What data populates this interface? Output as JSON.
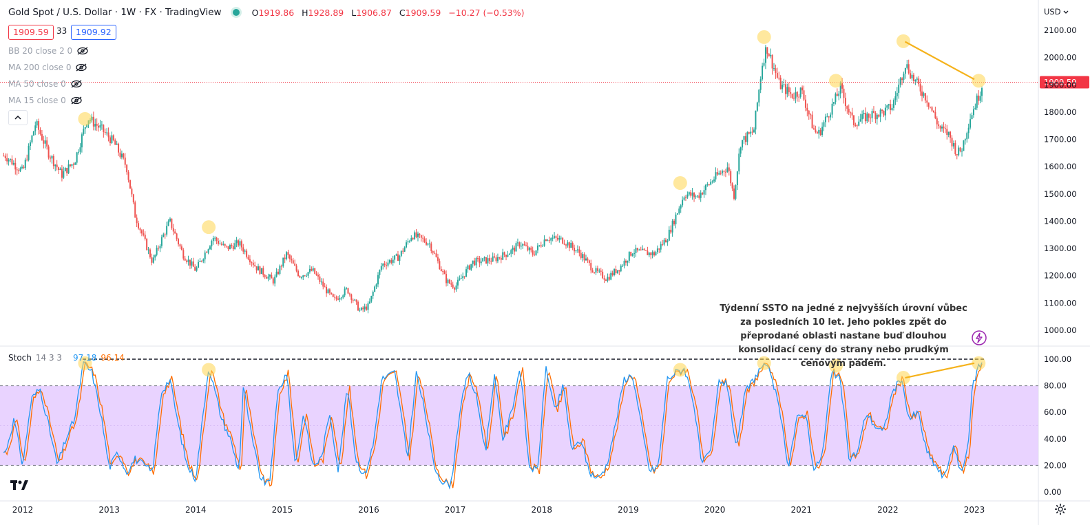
{
  "header": {
    "title": "Gold Spot / U.S. Dollar · 1W · FX  · TradingView",
    "ohlc": [
      {
        "k": "O",
        "v": "1919.86"
      },
      {
        "k": "H",
        "v": "1928.89"
      },
      {
        "k": "L",
        "v": "1906.87"
      },
      {
        "k": "C",
        "v": "1909.59"
      }
    ],
    "change": "−10.27 (−0.53%)",
    "sell_price": "1909.59",
    "spread": "33",
    "buy_price": "1909.92",
    "currency": "USD"
  },
  "indicators": [
    {
      "label": "BB 20 close 2 0"
    },
    {
      "label": "MA 200 close 0"
    },
    {
      "label": "MA 50 close 0"
    },
    {
      "label": "MA 15 close 0"
    }
  ],
  "stoch_legend": {
    "name": "Stoch",
    "params": "14 3 3",
    "k_value": "97.18",
    "d_value": "96.14"
  },
  "annotation": "Týdenní SSTO na jedné z nejvyšších úrovní vůbec za posledních 10 let. Jeho pokles zpět do přeprodané oblasti nastane buď dlouhou konsolidací ceny do strany nebo prudkým cenovým pádem.",
  "colors": {
    "up": "#26a69a",
    "down": "#ef5350",
    "k_line": "#2196f3",
    "d_line": "#ff6d00",
    "band": "#e1c4ff",
    "highlight": "#ffd54f",
    "trend": "#f5b21b",
    "last_price": "#f23645"
  },
  "chart_data": [
    {
      "type": "candlestick",
      "title": "Gold Spot / U.S. Dollar",
      "timeframe": "1W",
      "x_ticks": [
        "2012",
        "2013",
        "2014",
        "2015",
        "2016",
        "2017",
        "2018",
        "2019",
        "2020",
        "2021",
        "2022",
        "2023"
      ],
      "y_ticks": [
        "2100.00",
        "2000.00",
        "1900.00",
        "1800.00",
        "1700.00",
        "1600.00",
        "1500.00",
        "1400.00",
        "1300.00",
        "1200.00",
        "1100.00",
        "1000.00"
      ],
      "ylim": [
        960,
        2140
      ],
      "last_price": 1909.59,
      "last_price_label": "1909.59",
      "anchor_path": [
        [
          2011.8,
          1640
        ],
        [
          2012.0,
          1580
        ],
        [
          2012.15,
          1760
        ],
        [
          2012.3,
          1650
        ],
        [
          2012.45,
          1570
        ],
        [
          2012.6,
          1620
        ],
        [
          2012.75,
          1780
        ],
        [
          2012.9,
          1740
        ],
        [
          2013.05,
          1690
        ],
        [
          2013.2,
          1600
        ],
        [
          2013.3,
          1420
        ],
        [
          2013.5,
          1250
        ],
        [
          2013.6,
          1330
        ],
        [
          2013.7,
          1400
        ],
        [
          2013.85,
          1280
        ],
        [
          2014.0,
          1220
        ],
        [
          2014.2,
          1340
        ],
        [
          2014.35,
          1300
        ],
        [
          2014.5,
          1320
        ],
        [
          2014.7,
          1230
        ],
        [
          2014.9,
          1180
        ],
        [
          2015.05,
          1280
        ],
        [
          2015.2,
          1200
        ],
        [
          2015.35,
          1220
        ],
        [
          2015.5,
          1150
        ],
        [
          2015.6,
          1110
        ],
        [
          2015.75,
          1150
        ],
        [
          2015.9,
          1070
        ],
        [
          2016.0,
          1090
        ],
        [
          2016.15,
          1240
        ],
        [
          2016.35,
          1270
        ],
        [
          2016.5,
          1350
        ],
        [
          2016.7,
          1320
        ],
        [
          2016.9,
          1180
        ],
        [
          2017.0,
          1160
        ],
        [
          2017.2,
          1250
        ],
        [
          2017.45,
          1260
        ],
        [
          2017.65,
          1290
        ],
        [
          2017.75,
          1320
        ],
        [
          2017.9,
          1280
        ],
        [
          2018.05,
          1340
        ],
        [
          2018.25,
          1330
        ],
        [
          2018.45,
          1280
        ],
        [
          2018.6,
          1220
        ],
        [
          2018.75,
          1190
        ],
        [
          2018.9,
          1230
        ],
        [
          2019.05,
          1290
        ],
        [
          2019.3,
          1280
        ],
        [
          2019.45,
          1340
        ],
        [
          2019.55,
          1420
        ],
        [
          2019.65,
          1500
        ],
        [
          2019.8,
          1490
        ],
        [
          2020.0,
          1560
        ],
        [
          2020.15,
          1600
        ],
        [
          2020.22,
          1490
        ],
        [
          2020.3,
          1690
        ],
        [
          2020.45,
          1730
        ],
        [
          2020.55,
          1980
        ],
        [
          2020.6,
          2040
        ],
        [
          2020.75,
          1900
        ],
        [
          2020.9,
          1860
        ],
        [
          2021.0,
          1880
        ],
        [
          2021.15,
          1730
        ],
        [
          2021.2,
          1720
        ],
        [
          2021.4,
          1850
        ],
        [
          2021.45,
          1890
        ],
        [
          2021.6,
          1760
        ],
        [
          2021.8,
          1790
        ],
        [
          2021.95,
          1800
        ],
        [
          2022.05,
          1820
        ],
        [
          2022.15,
          1920
        ],
        [
          2022.2,
          1980
        ],
        [
          2022.3,
          1920
        ],
        [
          2022.45,
          1850
        ],
        [
          2022.6,
          1740
        ],
        [
          2022.7,
          1720
        ],
        [
          2022.8,
          1650
        ],
        [
          2022.85,
          1660
        ],
        [
          2022.95,
          1780
        ],
        [
          2023.05,
          1860
        ],
        [
          2023.1,
          1910
        ]
      ],
      "highlights": [
        [
          2012.72,
          1775
        ],
        [
          2014.15,
          1378
        ],
        [
          2019.6,
          1540
        ],
        [
          2020.57,
          2075
        ],
        [
          2021.4,
          1915
        ],
        [
          2022.18,
          2060
        ],
        [
          2023.05,
          1915
        ]
      ],
      "trendline": [
        [
          2022.2,
          2058
        ],
        [
          2023.0,
          1920
        ]
      ]
    },
    {
      "type": "line",
      "title": "Stoch",
      "params": "14 3 3",
      "y_ticks": [
        "100.00",
        "80.00",
        "60.00",
        "40.00",
        "20.00",
        "0.00"
      ],
      "ylim": [
        0,
        100
      ],
      "band": [
        20,
        80
      ],
      "reference_line": 100,
      "k_anchor": [
        [
          2011.8,
          30
        ],
        [
          2011.9,
          55
        ],
        [
          2012.0,
          20
        ],
        [
          2012.1,
          70
        ],
        [
          2012.2,
          78
        ],
        [
          2012.3,
          50
        ],
        [
          2012.4,
          20
        ],
        [
          2012.5,
          40
        ],
        [
          2012.6,
          55
        ],
        [
          2012.7,
          97
        ],
        [
          2012.8,
          90
        ],
        [
          2012.9,
          60
        ],
        [
          2013.0,
          18
        ],
        [
          2013.1,
          30
        ],
        [
          2013.2,
          15
        ],
        [
          2013.3,
          25
        ],
        [
          2013.4,
          20
        ],
        [
          2013.5,
          15
        ],
        [
          2013.6,
          75
        ],
        [
          2013.7,
          85
        ],
        [
          2013.8,
          50
        ],
        [
          2013.9,
          20
        ],
        [
          2014.0,
          10
        ],
        [
          2014.15,
          95
        ],
        [
          2014.3,
          55
        ],
        [
          2014.4,
          40
        ],
        [
          2014.5,
          15
        ],
        [
          2014.55,
          80
        ],
        [
          2014.65,
          40
        ],
        [
          2014.75,
          10
        ],
        [
          2014.85,
          5
        ],
        [
          2014.95,
          75
        ],
        [
          2015.05,
          90
        ],
        [
          2015.15,
          20
        ],
        [
          2015.25,
          60
        ],
        [
          2015.35,
          20
        ],
        [
          2015.45,
          25
        ],
        [
          2015.55,
          60
        ],
        [
          2015.65,
          15
        ],
        [
          2015.75,
          80
        ],
        [
          2015.85,
          25
        ],
        [
          2015.95,
          12
        ],
        [
          2016.05,
          35
        ],
        [
          2016.15,
          85
        ],
        [
          2016.3,
          90
        ],
        [
          2016.45,
          25
        ],
        [
          2016.55,
          90
        ],
        [
          2016.65,
          60
        ],
        [
          2016.75,
          20
        ],
        [
          2016.85,
          8
        ],
        [
          2016.95,
          5
        ],
        [
          2017.05,
          60
        ],
        [
          2017.15,
          90
        ],
        [
          2017.25,
          70
        ],
        [
          2017.35,
          30
        ],
        [
          2017.45,
          88
        ],
        [
          2017.55,
          40
        ],
        [
          2017.65,
          60
        ],
        [
          2017.75,
          95
        ],
        [
          2017.85,
          20
        ],
        [
          2017.95,
          15
        ],
        [
          2018.05,
          95
        ],
        [
          2018.15,
          60
        ],
        [
          2018.25,
          80
        ],
        [
          2018.35,
          30
        ],
        [
          2018.45,
          40
        ],
        [
          2018.55,
          15
        ],
        [
          2018.65,
          10
        ],
        [
          2018.75,
          20
        ],
        [
          2018.85,
          50
        ],
        [
          2018.95,
          85
        ],
        [
          2019.05,
          88
        ],
        [
          2019.15,
          50
        ],
        [
          2019.25,
          15
        ],
        [
          2019.35,
          20
        ],
        [
          2019.45,
          85
        ],
        [
          2019.55,
          90
        ],
        [
          2019.65,
          93
        ],
        [
          2019.75,
          70
        ],
        [
          2019.85,
          20
        ],
        [
          2019.95,
          30
        ],
        [
          2020.05,
          85
        ],
        [
          2020.15,
          80
        ],
        [
          2020.25,
          30
        ],
        [
          2020.35,
          75
        ],
        [
          2020.45,
          85
        ],
        [
          2020.55,
          95
        ],
        [
          2020.65,
          90
        ],
        [
          2020.75,
          60
        ],
        [
          2020.85,
          20
        ],
        [
          2020.95,
          55
        ],
        [
          2021.05,
          60
        ],
        [
          2021.15,
          15
        ],
        [
          2021.25,
          30
        ],
        [
          2021.35,
          90
        ],
        [
          2021.45,
          85
        ],
        [
          2021.55,
          25
        ],
        [
          2021.65,
          30
        ],
        [
          2021.75,
          60
        ],
        [
          2021.85,
          50
        ],
        [
          2021.95,
          45
        ],
        [
          2022.05,
          75
        ],
        [
          2022.15,
          85
        ],
        [
          2022.25,
          55
        ],
        [
          2022.35,
          60
        ],
        [
          2022.45,
          30
        ],
        [
          2022.55,
          20
        ],
        [
          2022.65,
          10
        ],
        [
          2022.75,
          35
        ],
        [
          2022.85,
          15
        ],
        [
          2022.92,
          30
        ],
        [
          2022.98,
          80
        ],
        [
          2023.05,
          95
        ],
        [
          2023.1,
          97
        ]
      ],
      "highlights": [
        [
          2012.72,
          97
        ],
        [
          2014.15,
          92
        ],
        [
          2019.6,
          92
        ],
        [
          2020.57,
          97
        ],
        [
          2021.4,
          95
        ],
        [
          2022.18,
          86
        ],
        [
          2023.05,
          97
        ]
      ],
      "trendline": [
        [
          2022.2,
          86
        ],
        [
          2023.0,
          97
        ]
      ]
    }
  ],
  "tv_logo": "TV"
}
